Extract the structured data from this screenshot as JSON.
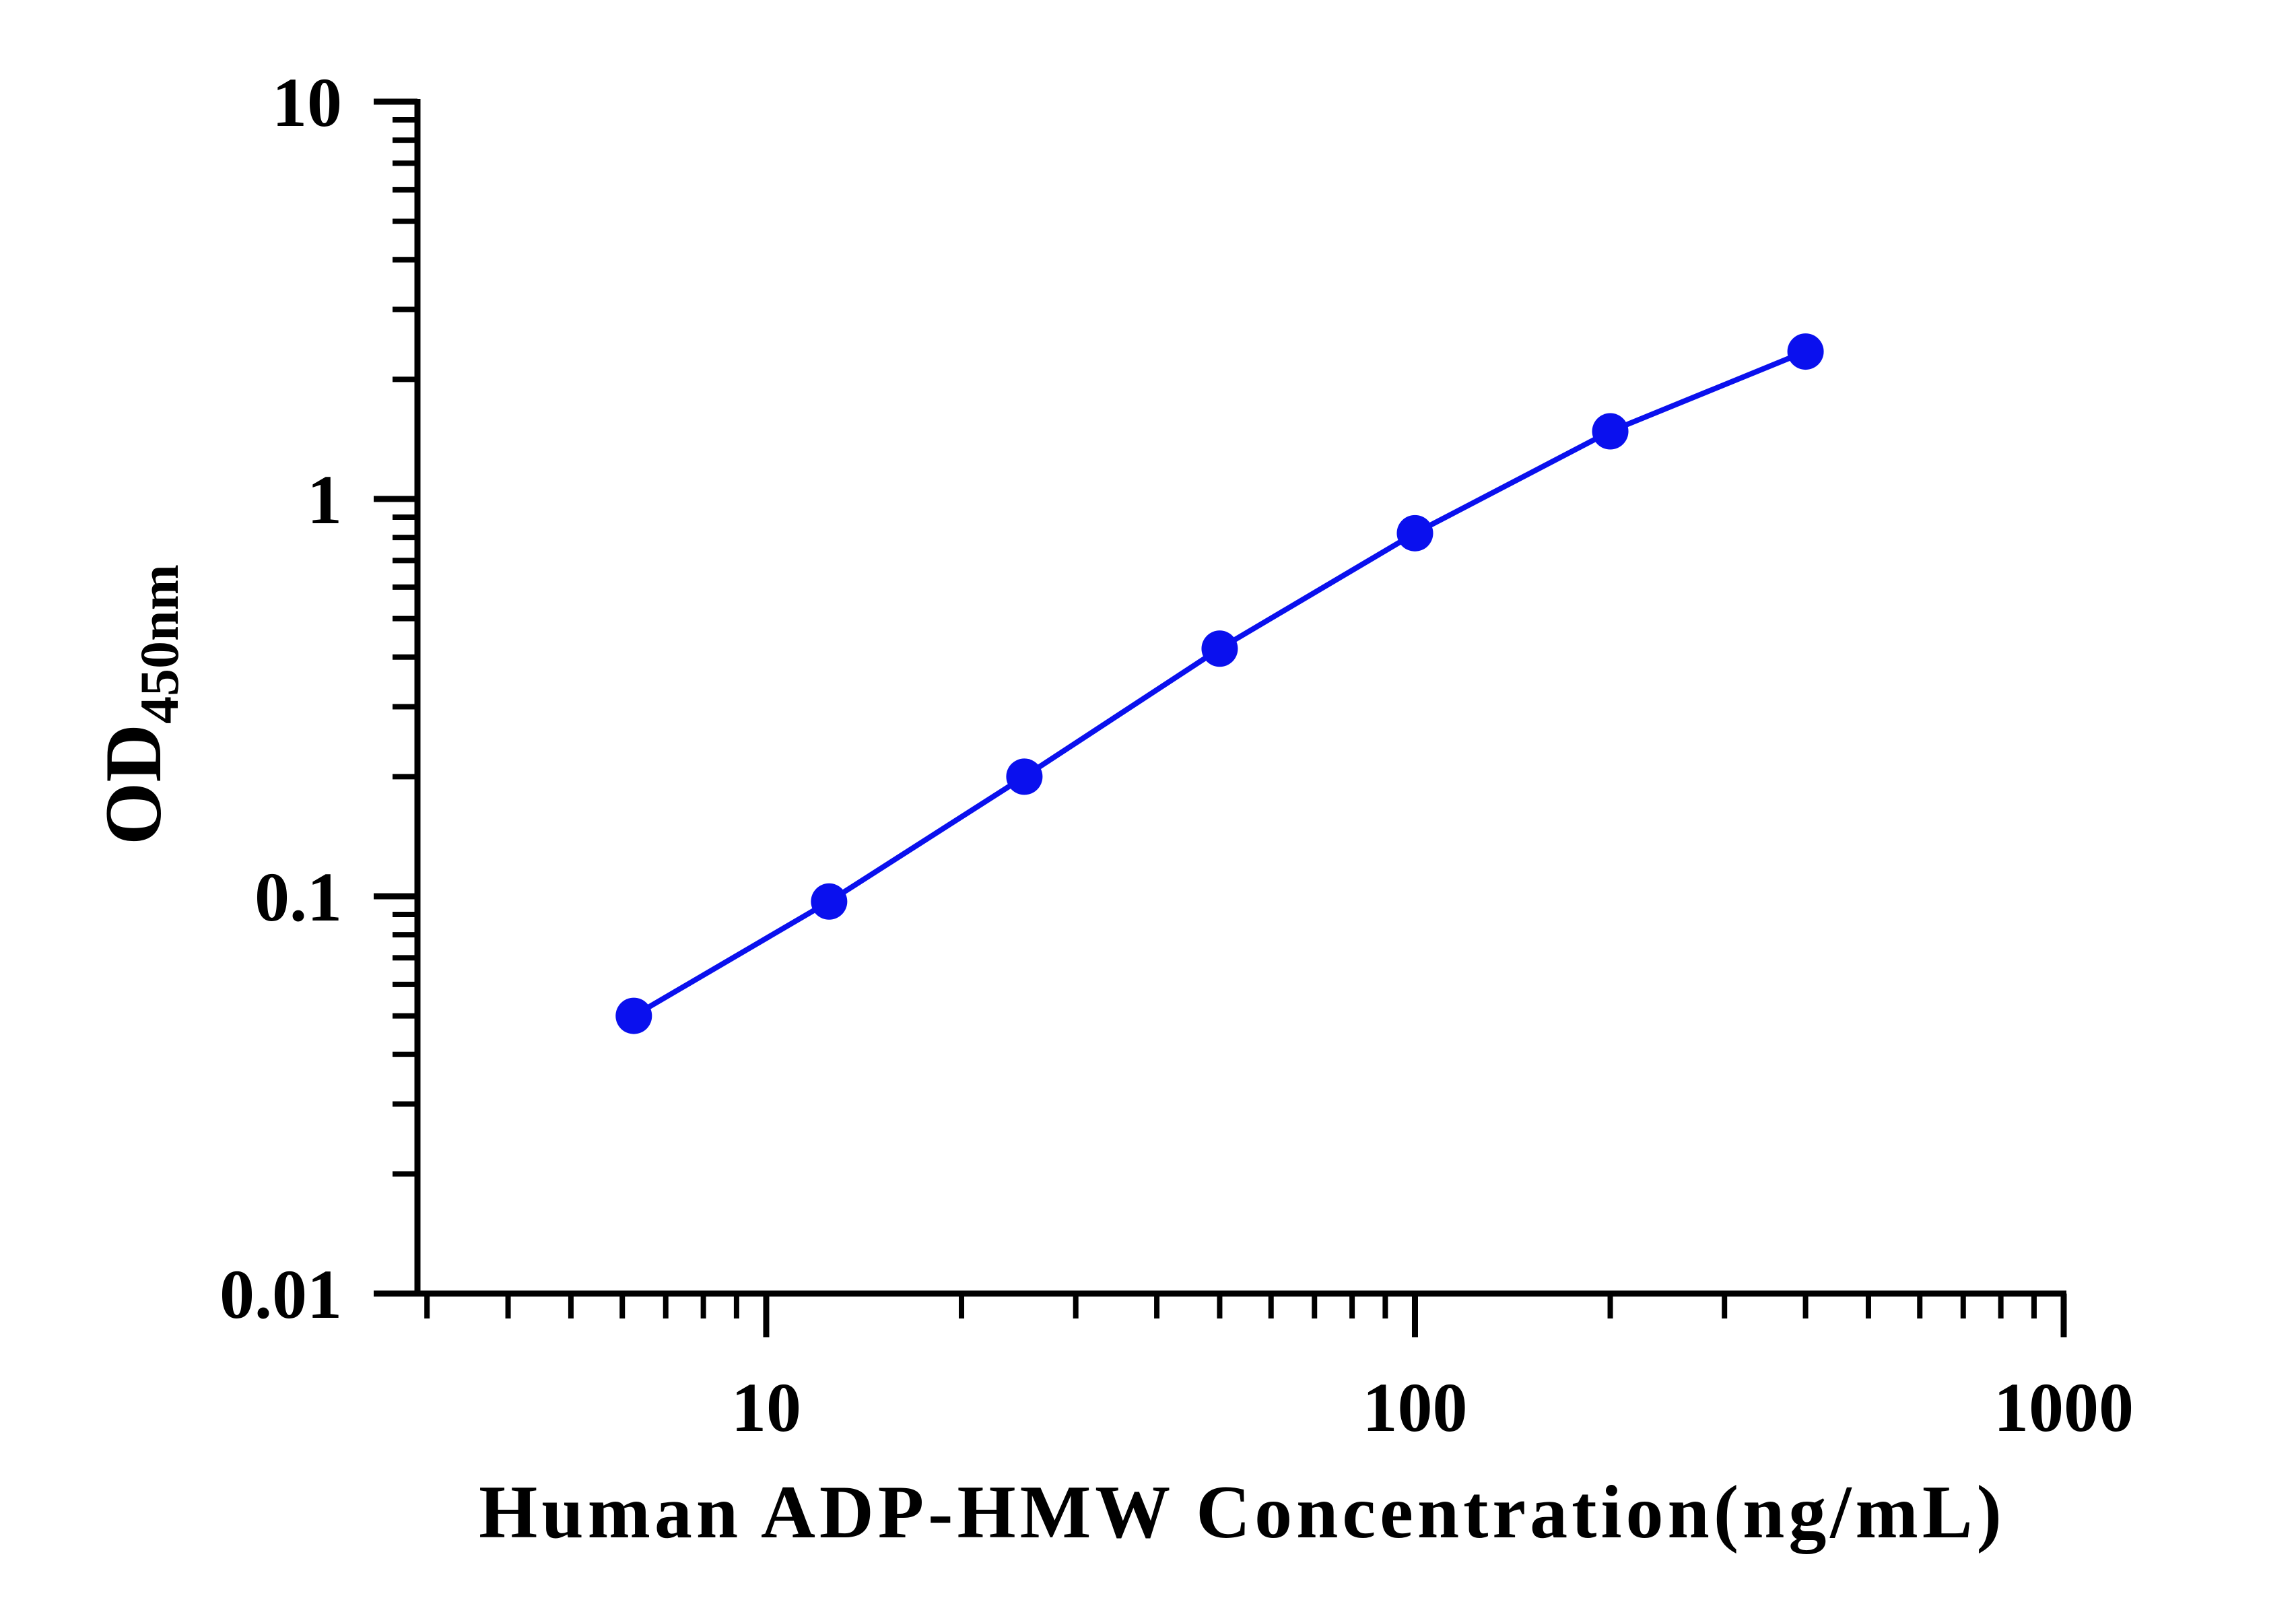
{
  "chart_data": {
    "type": "line",
    "x_scale": "log",
    "y_scale": "log",
    "xlabel": "Human ADP-HMW Concentration(ng/mL)",
    "ylabel_main": "OD",
    "ylabel_subscript": "450nm",
    "xlim": [
      2.9,
      1000
    ],
    "ylim": [
      0.01,
      10
    ],
    "x_tick_labels": [
      "10",
      "100",
      "1000"
    ],
    "y_tick_labels": [
      "0.01",
      "0.1",
      "1",
      "10"
    ],
    "x_ticks": [
      10,
      100,
      1000
    ],
    "y_ticks": [
      0.01,
      0.1,
      1,
      10
    ],
    "grid": false,
    "legend": "none",
    "series": [
      {
        "color": "#0a10ee",
        "x": [
          6.25,
          12.5,
          25,
          50,
          100,
          200,
          400
        ],
        "y": [
          0.05,
          0.097,
          0.2,
          0.42,
          0.82,
          1.48,
          2.35
        ]
      }
    ]
  }
}
